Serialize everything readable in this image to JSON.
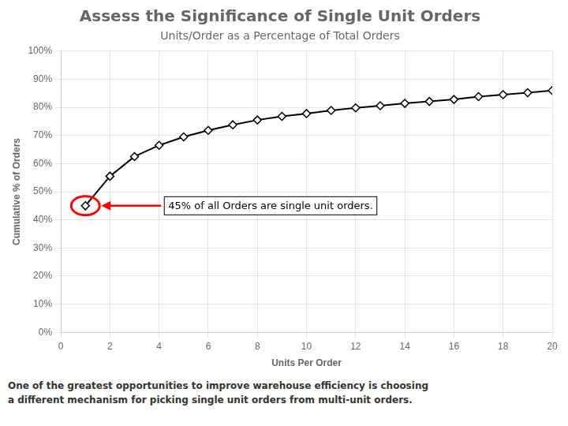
{
  "chart_data": {
    "type": "line",
    "title": "Assess the Significance of Single Unit Orders",
    "subtitle": "Units/Order as a Percentage of Total Orders",
    "xlabel": "Units Per Order",
    "ylabel": "Cumulative % of Orders",
    "x": [
      1,
      2,
      3,
      4,
      5,
      6,
      7,
      8,
      9,
      10,
      11,
      12,
      13,
      14,
      15,
      16,
      17,
      18,
      19,
      20
    ],
    "values": [
      0.45,
      0.555,
      0.625,
      0.665,
      0.695,
      0.718,
      0.738,
      0.755,
      0.768,
      0.778,
      0.789,
      0.798,
      0.806,
      0.814,
      0.821,
      0.828,
      0.838,
      0.845,
      0.852,
      0.86
    ],
    "color": "#000000",
    "marker": "diamond",
    "xlim": [
      0,
      20
    ],
    "ylim": [
      0,
      1.0
    ],
    "xticks": [
      0,
      2,
      4,
      6,
      8,
      10,
      12,
      14,
      16,
      18,
      20
    ],
    "yticks": [
      {
        "value": 0.0,
        "label": "0%"
      },
      {
        "value": 0.1,
        "label": "10%"
      },
      {
        "value": 0.2,
        "label": "20%"
      },
      {
        "value": 0.3,
        "label": "30%"
      },
      {
        "value": 0.4,
        "label": "40%"
      },
      {
        "value": 0.5,
        "label": "50%"
      },
      {
        "value": 0.6,
        "label": "60%"
      },
      {
        "value": 0.7,
        "label": "70%"
      },
      {
        "value": 0.8,
        "label": "80%"
      },
      {
        "value": 0.9,
        "label": "90%"
      },
      {
        "value": 1.0,
        "label": "100%"
      }
    ],
    "grid": true,
    "annotations": [
      {
        "text": "45% of all Orders are single unit orders.",
        "x": 1,
        "y": 0.45,
        "color": "#FF0000"
      }
    ],
    "footer": [
      "One of the greatest opportunities to improve warehouse efficiency is choosing",
      "a different mechanism for picking single unit orders from multi-unit orders."
    ]
  }
}
